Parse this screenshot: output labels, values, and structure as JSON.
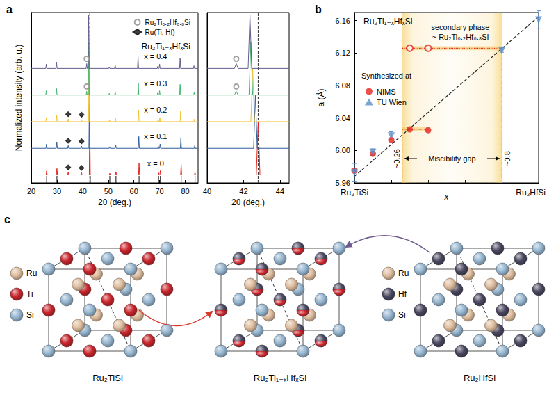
{
  "chart_data": [
    {
      "panel_label": "a",
      "type": "line",
      "title": "Ru₂Ti₁₋ₓHfₓSi",
      "xlabel": "2θ (deg.)",
      "ylabel": "Normalized intensity (arb. u.)",
      "xlim": [
        20,
        85
      ],
      "xticks": [
        20,
        30,
        40,
        50,
        60,
        70,
        80
      ],
      "ylim": [
        -0.15,
        3.05
      ],
      "tick_labels": "x",
      "grid": false,
      "reference_line_x": 42.8,
      "reference_peaks": [
        26.0,
        30.0,
        43.0,
        50.6,
        53.0,
        62.0,
        69.6,
        70.3,
        78.4,
        83.8
      ],
      "legend": "top-right",
      "markers": [
        {
          "name": "Ru₂Ti₀.₂Hf₀.₈Si",
          "marker": "open-circle",
          "color": "#8c8c8c"
        },
        {
          "name": "Ru(Ti, Hf)",
          "marker": "diamond",
          "color": "#111111"
        }
      ],
      "series": [
        {
          "name": "x = 0",
          "color": "#e3241f",
          "offset": 0,
          "peaks": [
            [
              26.0,
              0.08
            ],
            [
              30.0,
              0.12
            ],
            [
              34.4,
              0.05
            ],
            [
              39.6,
              0.04
            ],
            [
              42.8,
              1.0
            ],
            [
              50.6,
              0.03
            ],
            [
              53.0,
              0.06
            ],
            [
              62.0,
              0.22
            ],
            [
              69.6,
              0.04
            ],
            [
              70.3,
              0.08
            ],
            [
              78.4,
              0.2
            ],
            [
              83.8,
              0.05
            ]
          ],
          "marked": [
            {
              "x": 34.4,
              "marker": "diamond"
            },
            {
              "x": 39.6,
              "marker": "diamond"
            }
          ]
        },
        {
          "name": "x = 0.1",
          "color": "#2f5d9b",
          "offset": 0.5,
          "peaks": [
            [
              25.95,
              0.08
            ],
            [
              29.95,
              0.12
            ],
            [
              34.4,
              0.05
            ],
            [
              39.6,
              0.04
            ],
            [
              42.65,
              1.0
            ],
            [
              50.55,
              0.03
            ],
            [
              52.9,
              0.06
            ],
            [
              61.9,
              0.22
            ],
            [
              69.5,
              0.04
            ],
            [
              70.2,
              0.08
            ],
            [
              78.3,
              0.2
            ],
            [
              83.7,
              0.05
            ]
          ],
          "marked": [
            {
              "x": 34.4,
              "marker": "diamond"
            },
            {
              "x": 39.6,
              "marker": "diamond"
            }
          ]
        },
        {
          "name": "x = 0.2",
          "color": "#f2c230",
          "offset": 1.0,
          "peaks": [
            [
              25.9,
              0.08
            ],
            [
              29.9,
              0.12
            ],
            [
              34.4,
              0.05
            ],
            [
              39.6,
              0.04
            ],
            [
              42.5,
              1.0
            ],
            [
              50.5,
              0.03
            ],
            [
              52.8,
              0.06
            ],
            [
              61.8,
              0.22
            ],
            [
              69.4,
              0.04
            ],
            [
              70.1,
              0.08
            ],
            [
              78.2,
              0.2
            ],
            [
              83.6,
              0.05
            ]
          ],
          "marked": [
            {
              "x": 34.4,
              "marker": "diamond"
            },
            {
              "x": 39.6,
              "marker": "diamond"
            }
          ]
        },
        {
          "name": "x = 0.3",
          "color": "#3fb36e",
          "offset": 1.5,
          "peaks": [
            [
              25.85,
              0.08
            ],
            [
              29.85,
              0.12
            ],
            [
              41.6,
              0.07
            ],
            [
              42.4,
              1.0
            ],
            [
              50.4,
              0.03
            ],
            [
              52.7,
              0.06
            ],
            [
              61.7,
              0.22
            ],
            [
              69.3,
              0.04
            ],
            [
              70.0,
              0.08
            ],
            [
              78.0,
              0.2
            ],
            [
              83.5,
              0.05
            ]
          ],
          "marked": [
            {
              "x": 41.6,
              "marker": "open-circle"
            }
          ]
        },
        {
          "name": "x = 0.4",
          "color": "#625e8c",
          "offset": 2.0,
          "peaks": [
            [
              25.85,
              0.08
            ],
            [
              29.85,
              0.12
            ],
            [
              41.6,
              0.09
            ],
            [
              42.35,
              1.0
            ],
            [
              50.4,
              0.03
            ],
            [
              52.7,
              0.06
            ],
            [
              61.6,
              0.22
            ],
            [
              69.3,
              0.04
            ],
            [
              70.0,
              0.08
            ],
            [
              78.0,
              0.2
            ],
            [
              83.4,
              0.05
            ]
          ],
          "marked": [
            {
              "x": 41.6,
              "marker": "open-circle"
            }
          ]
        }
      ]
    },
    {
      "type": "line",
      "xlabel": "2θ (deg.)",
      "xlim": [
        40,
        44.5
      ],
      "xticks": [
        40,
        42,
        44
      ],
      "ylim": [
        -0.15,
        3.05
      ],
      "tick_labels": "x",
      "grid": false,
      "reference_line_x": 42.8,
      "markers": [
        {
          "marker": "open-circle",
          "color": "#8c8c8c"
        }
      ],
      "series": [
        {
          "color": "#e3241f",
          "offset": 0,
          "peaks": [
            [
              42.8,
              1.0
            ]
          ]
        },
        {
          "color": "#2f5d9b",
          "offset": 0.5,
          "peaks": [
            [
              42.65,
              1.0
            ]
          ]
        },
        {
          "color": "#f2c230",
          "offset": 1.0,
          "peaks": [
            [
              42.5,
              1.0
            ]
          ]
        },
        {
          "color": "#3fb36e",
          "offset": 1.5,
          "peaks": [
            [
              41.6,
              0.07
            ],
            [
              42.4,
              1.0
            ]
          ],
          "marked": [
            {
              "x": 41.6,
              "marker": "open-circle"
            }
          ]
        },
        {
          "color": "#625e8c",
          "offset": 2.0,
          "peaks": [
            [
              41.6,
              0.09
            ],
            [
              42.35,
              1.0
            ]
          ],
          "marked": [
            {
              "x": 41.6,
              "marker": "open-circle"
            }
          ]
        }
      ]
    },
    {
      "panel_label": "b",
      "type": "scatter",
      "title": "Ru₂Ti₁₋ₓHfₓSi",
      "xlabel": "x",
      "ylabel": "a (Å)",
      "xlim": [
        0,
        1
      ],
      "xticks": [
        0,
        0.2,
        0.4,
        0.6,
        0.8,
        1
      ],
      "ylim": [
        5.96,
        6.17
      ],
      "yticks": [
        5.96,
        {
          "value": 6,
          "label": "6.00"
        },
        6.04,
        6.08,
        6.12,
        6.16
      ],
      "tick_labels": "y",
      "grid": false,
      "legend": "middle-left",
      "legend_title": "Synthesized at",
      "x_end_labels": [
        "Ru₂TiSi",
        "Ru₂HfSi"
      ],
      "miscibility_gap": [
        0.26,
        0.8
      ],
      "gap_labels": [
        "~0.26",
        "~0.8"
      ],
      "gap_title": "Miscibility gap",
      "gap_levels": [
        6.026,
        6.126
      ],
      "secondary_phase_labels": [
        "secondary phase",
        "~ Ru₂Ti₀.₂Hf₀.₈Si"
      ],
      "series": [
        {
          "name": "NIMS",
          "type": "scatter",
          "marker": "circle",
          "color": "#e3241f",
          "x": [
            0,
            0.1,
            0.2,
            0.3,
            0.4
          ],
          "values": [
            5.975,
            5.996,
            6.013,
            6.026,
            6.025
          ]
        },
        {
          "name": "TU Wien",
          "type": "scatter",
          "marker": "triangle-down",
          "color": "#5b8ec8",
          "x": [
            0,
            0.1,
            0.2,
            0.8,
            1
          ],
          "values": [
            5.973,
            5.998,
            6.018,
            6.123,
            6.161
          ],
          "errors": [
            0.011,
            0.004,
            0.005,
            0.002,
            0.011
          ]
        },
        {
          "type": "scatter",
          "marker": "open-circle",
          "color": "#e3241f",
          "x": [
            0.3,
            0.4
          ],
          "values": [
            6.126,
            6.126
          ]
        },
        {
          "type": "line",
          "line_style": "dashed",
          "color": "#222222",
          "x": [
            0,
            1
          ],
          "values": [
            5.968,
            6.165
          ]
        }
      ]
    }
  ],
  "panel_c": {
    "panel_label": "c",
    "elements": {
      "Ru": "#dfbd9f",
      "Ti": "#c8262c",
      "Hf": "#4a4860",
      "Si": "#96b6d0"
    },
    "structures": [
      {
        "caption": "Ru₂TiSi",
        "legend": [
          "Ru",
          "Ti",
          "Si"
        ],
        "atoms": {
          "A": "Ru",
          "B": [
            "Ti"
          ],
          "C": "Si"
        }
      },
      {
        "caption": "Ru₂Ti₁₋ₓHfₓSi",
        "legend": [],
        "atoms": {
          "A": "Ru",
          "B": [
            "Ti",
            "Hf"
          ],
          "C": "Si"
        }
      },
      {
        "caption": "Ru₂HfSi",
        "legend": [
          "Ru",
          "Hf",
          "Si"
        ],
        "atoms": {
          "A": "Ru",
          "B": [
            "Hf"
          ],
          "C": "Si"
        }
      }
    ]
  }
}
